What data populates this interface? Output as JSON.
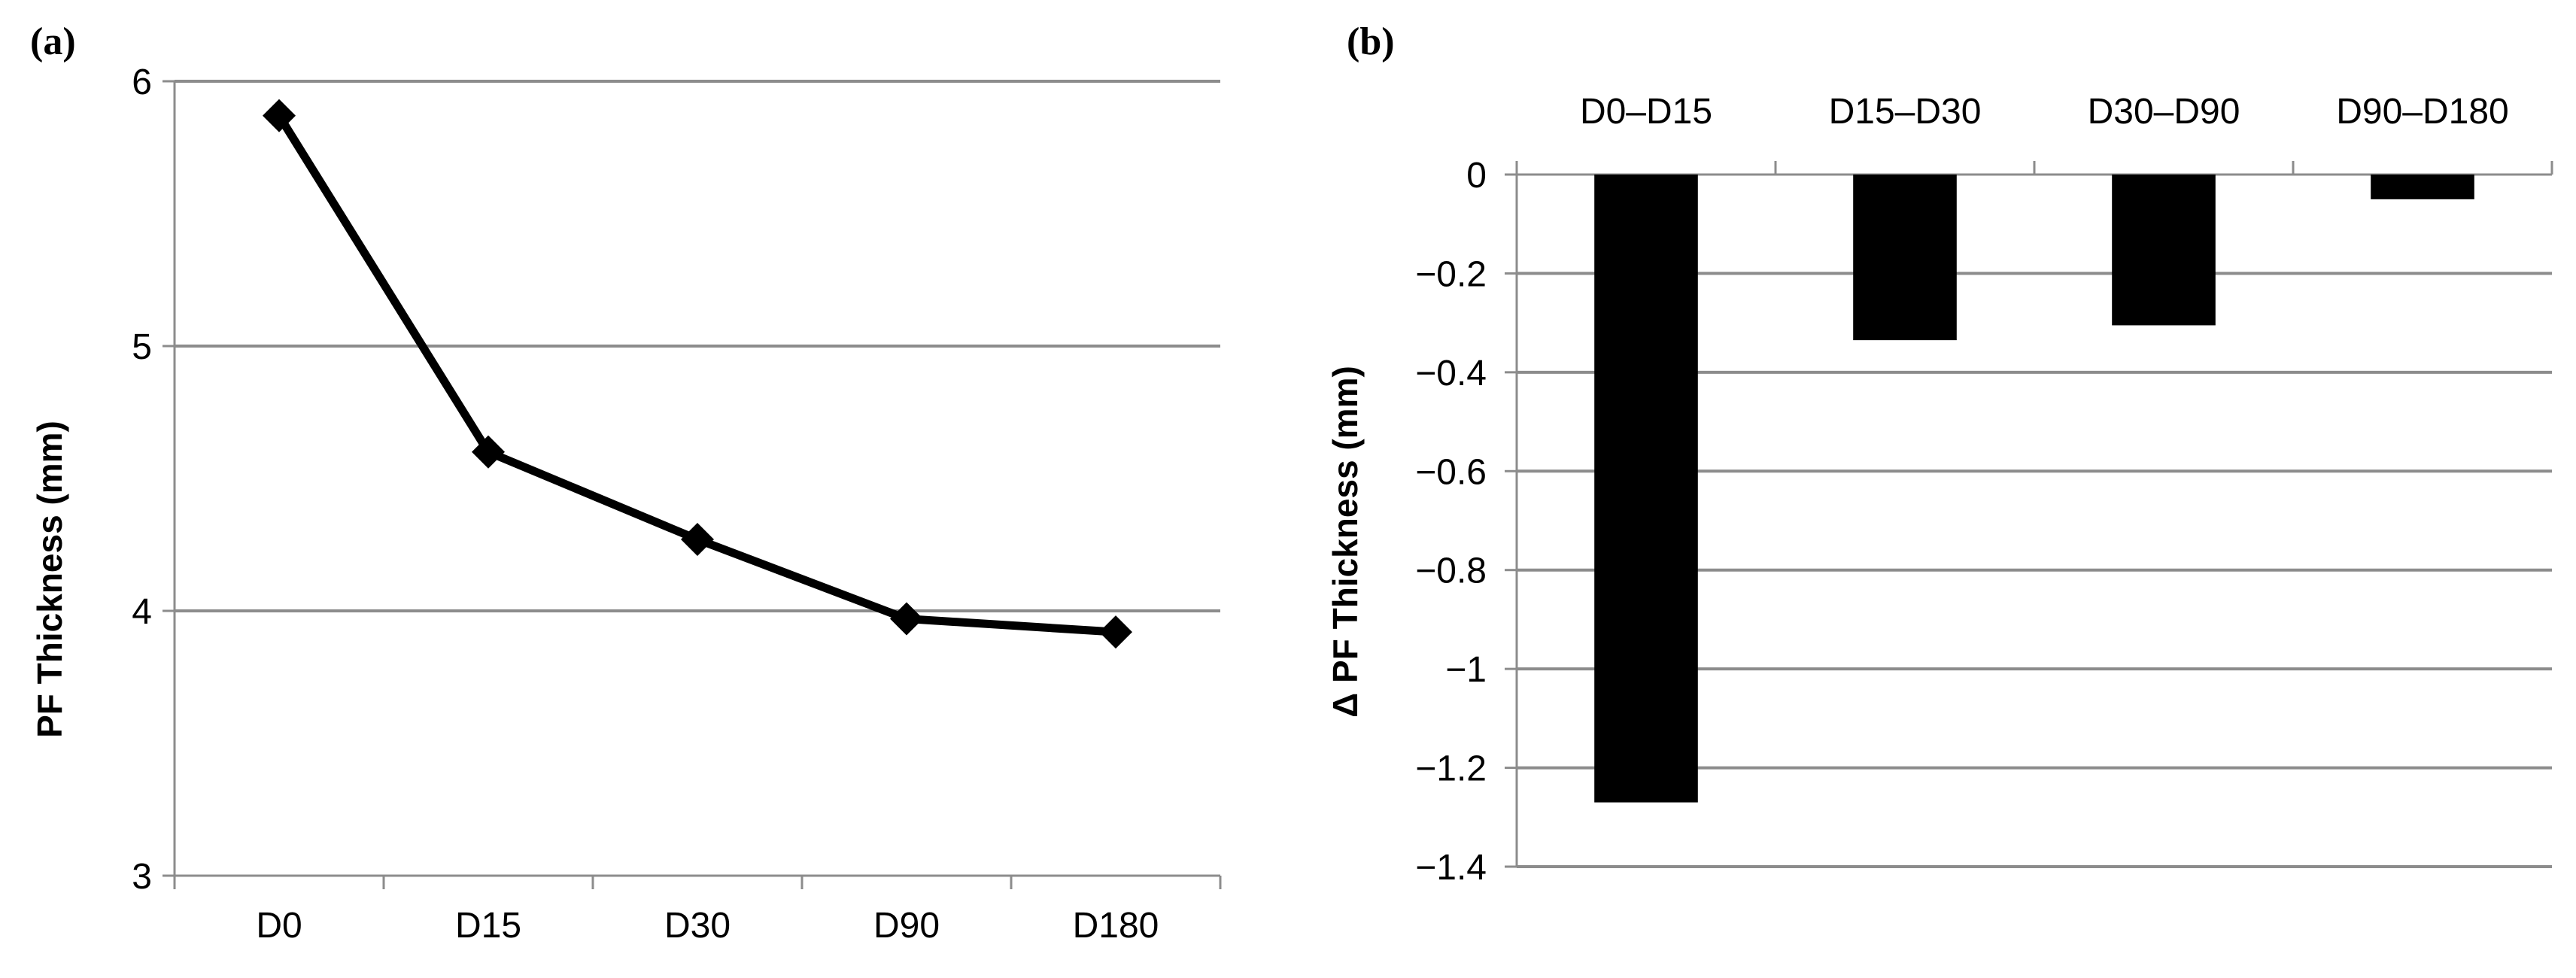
{
  "chart_data": [
    {
      "panel_label": "(a)",
      "type": "line",
      "categories": [
        "D0",
        "D15",
        "D30",
        "D90",
        "D180"
      ],
      "values": [
        5.87,
        4.6,
        4.27,
        3.97,
        3.92
      ],
      "ylabel": "PF Thickness (mm)",
      "xlabel": "",
      "ylim": [
        3,
        6
      ],
      "yticks": [
        "3",
        "4",
        "5",
        "6"
      ],
      "marker": "diamond",
      "grid": true,
      "color": "#000000"
    },
    {
      "panel_label": "(b)",
      "type": "bar",
      "categories": [
        "D0–D15",
        "D15–D30",
        "D30–D90",
        "D90–D180"
      ],
      "values": [
        -1.27,
        -0.335,
        -0.305,
        -0.05
      ],
      "ylabel": "Δ PF Thickness  (mm)",
      "xlabel": "",
      "ylim": [
        -1.4,
        0
      ],
      "yticks": [
        "0",
        "−0.2",
        "−0.4",
        "−0.6",
        "−0.8",
        "−1",
        "−1.2",
        "−1.4"
      ],
      "grid": true,
      "color": "#000000"
    }
  ]
}
